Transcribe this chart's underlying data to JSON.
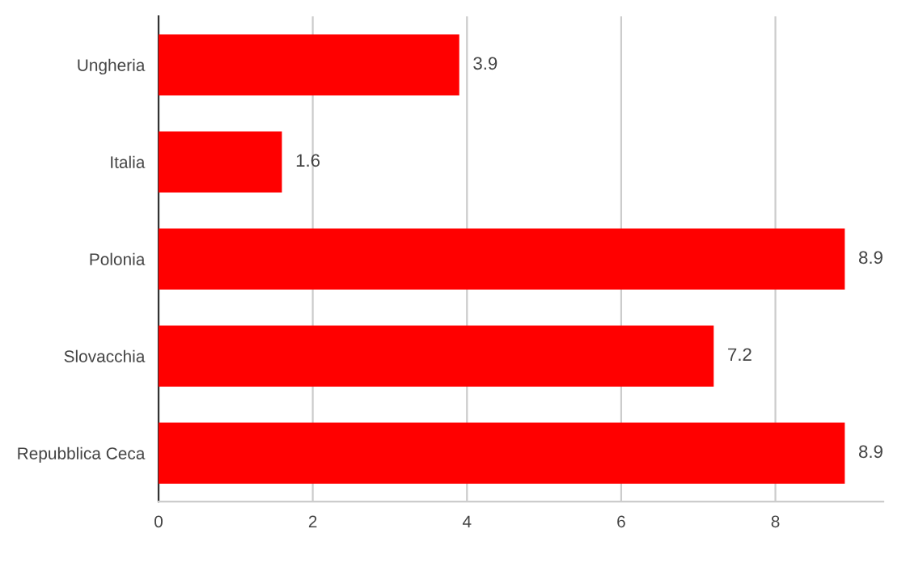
{
  "chart_data": {
    "type": "bar",
    "orientation": "horizontal",
    "categories": [
      "Ungheria",
      "Italia",
      "Polonia",
      "Slovacchia",
      "Repubblica Ceca"
    ],
    "values": [
      3.9,
      1.6,
      8.9,
      7.2,
      8.9
    ],
    "color": "#ff0000",
    "xlim": [
      0,
      9.4
    ],
    "xticks": [
      0,
      2,
      4,
      6,
      8
    ],
    "grid": "x",
    "data_labels": true
  }
}
